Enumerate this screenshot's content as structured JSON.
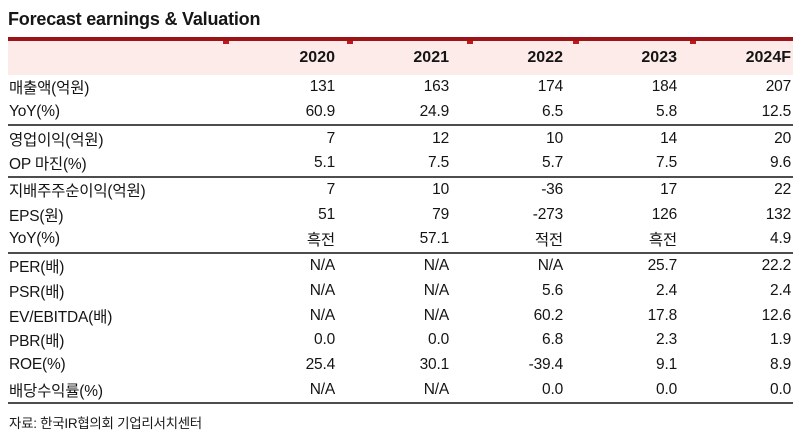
{
  "title": "Forecast earnings & Valuation",
  "table": {
    "columns": [
      "",
      "2020",
      "2021",
      "2022",
      "2023",
      "2024F"
    ],
    "groups": [
      {
        "rows": [
          {
            "label": "매출액(억원)",
            "values": [
              "131",
              "163",
              "174",
              "184",
              "207"
            ]
          },
          {
            "label": "YoY(%)",
            "values": [
              "60.9",
              "24.9",
              "6.5",
              "5.8",
              "12.5"
            ]
          }
        ]
      },
      {
        "rows": [
          {
            "label": "영업이익(억원)",
            "values": [
              "7",
              "12",
              "10",
              "14",
              "20"
            ]
          },
          {
            "label": "OP 마진(%)",
            "values": [
              "5.1",
              "7.5",
              "5.7",
              "7.5",
              "9.6"
            ]
          }
        ]
      },
      {
        "rows": [
          {
            "label": "지배주주순이익(억원)",
            "values": [
              "7",
              "10",
              "-36",
              "17",
              "22"
            ]
          },
          {
            "label": "EPS(원)",
            "values": [
              "51",
              "79",
              "-273",
              "126",
              "132"
            ]
          },
          {
            "label": "YoY(%)",
            "values": [
              "흑전",
              "57.1",
              "적전",
              "흑전",
              "4.9"
            ]
          }
        ]
      },
      {
        "rows": [
          {
            "label": "PER(배)",
            "values": [
              "N/A",
              "N/A",
              "N/A",
              "25.7",
              "22.2"
            ]
          },
          {
            "label": "PSR(배)",
            "values": [
              "N/A",
              "N/A",
              "5.6",
              "2.4",
              "2.4"
            ]
          },
          {
            "label": "EV/EBITDA(배)",
            "values": [
              "N/A",
              "N/A",
              "60.2",
              "17.8",
              "12.6"
            ]
          },
          {
            "label": "PBR(배)",
            "values": [
              "0.0",
              "0.0",
              "6.8",
              "2.3",
              "1.9"
            ]
          },
          {
            "label": "ROE(%)",
            "values": [
              "25.4",
              "30.1",
              "-39.4",
              "9.1",
              "8.9"
            ]
          },
          {
            "label": "배당수익률(%)",
            "values": [
              "N/A",
              "N/A",
              "0.0",
              "0.0",
              "0.0"
            ]
          }
        ]
      }
    ]
  },
  "source": "자료: 한국IR협의회 기업리서치센터",
  "colors": {
    "accent_rule": "#9c1318",
    "column_tick": "#c11a1a",
    "header_background": "#fcebe9",
    "section_divider": "#4d4d4d",
    "text": "#141414"
  }
}
